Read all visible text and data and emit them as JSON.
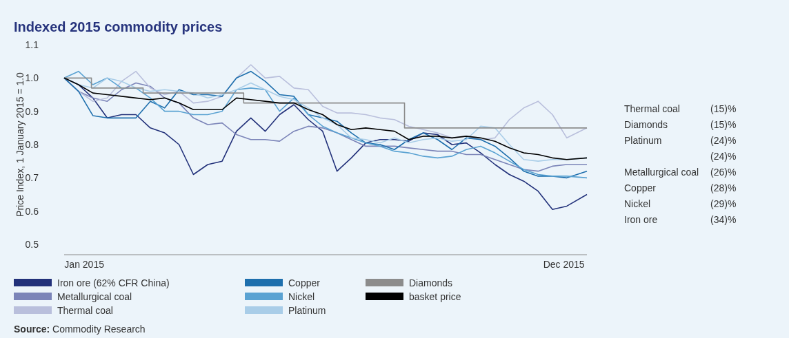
{
  "chart_data": {
    "type": "line",
    "title": "Indexed 2015 commodity prices",
    "ylabel": "Price Index, 1 January 2015 = 1.0",
    "x": [
      "2015-01-01",
      "2015-01-11",
      "2015-01-21",
      "2015-01-31",
      "2015-02-10",
      "2015-02-20",
      "2015-03-02",
      "2015-03-12",
      "2015-03-22",
      "2015-04-01",
      "2015-04-11",
      "2015-04-21",
      "2015-05-01",
      "2015-05-11",
      "2015-05-21",
      "2015-05-31",
      "2015-06-10",
      "2015-06-20",
      "2015-06-30",
      "2015-07-10",
      "2015-07-20",
      "2015-07-30",
      "2015-08-09",
      "2015-08-19",
      "2015-08-29",
      "2015-09-08",
      "2015-09-18",
      "2015-09-28",
      "2015-10-08",
      "2015-10-18",
      "2015-10-28",
      "2015-11-07",
      "2015-11-17",
      "2015-11-27",
      "2015-12-07",
      "2015-12-17",
      "2015-12-31"
    ],
    "xlim": [
      "2015-01-01",
      "2015-12-31"
    ],
    "xticks": [
      {
        "value": "2015-01-15",
        "label": "Jan 2015"
      },
      {
        "value": "2015-12-15",
        "label": "Dec 2015"
      }
    ],
    "ylim": [
      0.5,
      1.1
    ],
    "yticks": [
      0.5,
      0.6,
      0.7,
      0.8,
      0.9,
      {
        "value": 1,
        "label": "1.0"
      },
      1.1
    ],
    "grid": false,
    "legend": "bottom",
    "series": [
      {
        "name": "Iron ore (62% CFR China)",
        "color": "#22317a",
        "values": [
          1.0,
          0.98,
          0.94,
          0.88,
          0.89,
          0.89,
          0.85,
          0.835,
          0.8,
          0.71,
          0.74,
          0.75,
          0.84,
          0.88,
          0.84,
          0.89,
          0.92,
          0.875,
          0.84,
          0.72,
          0.76,
          0.805,
          0.815,
          0.815,
          0.81,
          0.835,
          0.83,
          0.8,
          0.805,
          0.775,
          0.74,
          0.71,
          0.69,
          0.66,
          0.605,
          0.615,
          0.65
        ]
      },
      {
        "name": "Metallurgical coal",
        "color": "#7b84b8",
        "values": [
          1.0,
          0.96,
          0.94,
          0.93,
          0.965,
          0.985,
          0.975,
          0.94,
          0.925,
          0.88,
          0.86,
          0.865,
          0.83,
          0.815,
          0.815,
          0.81,
          0.84,
          0.855,
          0.85,
          0.835,
          0.815,
          0.795,
          0.795,
          0.795,
          0.79,
          0.785,
          0.78,
          0.78,
          0.77,
          0.77,
          0.755,
          0.74,
          0.725,
          0.72,
          0.735,
          0.74,
          0.74
        ]
      },
      {
        "name": "Thermal coal",
        "color": "#b9bfdc",
        "values": [
          1.0,
          0.96,
          0.93,
          0.94,
          0.99,
          1.02,
          0.97,
          0.95,
          0.96,
          0.925,
          0.93,
          0.945,
          1.0,
          1.04,
          1.0,
          1.005,
          0.97,
          0.965,
          0.915,
          0.895,
          0.895,
          0.89,
          0.88,
          0.875,
          0.855,
          0.845,
          0.835,
          0.82,
          0.825,
          0.815,
          0.82,
          0.875,
          0.91,
          0.93,
          0.89,
          0.82,
          0.85
        ]
      },
      {
        "name": "Copper",
        "color": "#1e6fad",
        "values": [
          1.0,
          0.96,
          0.887,
          0.88,
          0.88,
          0.88,
          0.93,
          0.91,
          0.965,
          0.95,
          0.95,
          0.945,
          1.0,
          1.02,
          0.99,
          0.95,
          0.945,
          0.89,
          0.88,
          0.87,
          0.835,
          0.805,
          0.8,
          0.785,
          0.815,
          0.835,
          0.815,
          0.785,
          0.82,
          0.815,
          0.795,
          0.76,
          0.72,
          0.705,
          0.705,
          0.7,
          0.72
        ]
      },
      {
        "name": "Nickel",
        "color": "#5aa2d2",
        "values": [
          1.0,
          1.02,
          0.98,
          1.0,
          0.97,
          0.97,
          0.94,
          0.9,
          0.9,
          0.89,
          0.89,
          0.9,
          0.965,
          0.97,
          0.965,
          0.9,
          0.94,
          0.89,
          0.855,
          0.835,
          0.82,
          0.805,
          0.795,
          0.78,
          0.775,
          0.765,
          0.76,
          0.765,
          0.785,
          0.795,
          0.775,
          0.75,
          0.725,
          0.71,
          0.705,
          0.705,
          0.7
        ]
      },
      {
        "name": "Platinum",
        "color": "#a9cde8",
        "values": [
          1.0,
          0.98,
          0.97,
          1.0,
          0.99,
          0.97,
          0.96,
          0.965,
          0.96,
          0.955,
          0.94,
          0.95,
          0.965,
          0.985,
          0.965,
          0.945,
          0.935,
          0.91,
          0.88,
          0.86,
          0.82,
          0.815,
          0.805,
          0.82,
          0.805,
          0.815,
          0.82,
          0.81,
          0.815,
          0.855,
          0.85,
          0.8,
          0.755,
          0.75,
          0.755,
          0.755,
          0.76
        ]
      },
      {
        "name": "Diamonds",
        "color": "#8c8c8c",
        "type": "step",
        "x": [
          "2015-01-01",
          "2015-01-20",
          "2015-02-25",
          "2015-05-06",
          "2015-08-26",
          "2015-12-31"
        ],
        "values": [
          1.0,
          0.97,
          0.955,
          0.925,
          0.85,
          0.85
        ]
      },
      {
        "name": "basket price",
        "color": "#000000",
        "values": [
          1.0,
          0.98,
          0.955,
          0.95,
          0.945,
          0.94,
          0.935,
          0.94,
          0.925,
          0.905,
          0.905,
          0.905,
          0.94,
          0.935,
          0.93,
          0.925,
          0.925,
          0.905,
          0.89,
          0.86,
          0.845,
          0.85,
          0.845,
          0.84,
          0.815,
          0.825,
          0.825,
          0.82,
          0.825,
          0.82,
          0.81,
          0.79,
          0.775,
          0.77,
          0.76,
          0.755,
          0.76
        ]
      }
    ],
    "annotations": [
      "Thermal coal\t(15)%",
      "Diamonds\t(15)%",
      "Platinum\t(24)%",
      "(24)%",
      "Metallurgical coal\t(26)%",
      "Copper\t(28)%",
      "Nickel\t(29)%",
      "Iron ore\t(34)%",
      "Source: Commodity Research"
    ]
  }
}
